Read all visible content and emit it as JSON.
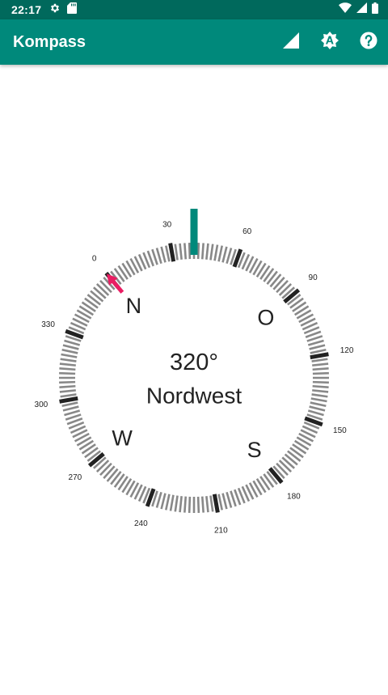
{
  "status_bar": {
    "time": "22:17"
  },
  "app_bar": {
    "title": "Kompass"
  },
  "compass": {
    "heading_text": "320°",
    "direction_text": "Nordwest",
    "cardinals": {
      "north": "N",
      "east": "O",
      "south": "S",
      "west": "W"
    },
    "degree_labels": [
      "0",
      "30",
      "60",
      "90",
      "120",
      "150",
      "180",
      "210",
      "240",
      "270",
      "300",
      "330"
    ],
    "rotation_deg": 320
  },
  "colors": {
    "status_bar": "#00695c",
    "app_bar": "#00897b",
    "indicator": "#00897b",
    "north_arrow": "#e91e63",
    "major_tick": "#222222",
    "minor_tick": "#888888"
  }
}
